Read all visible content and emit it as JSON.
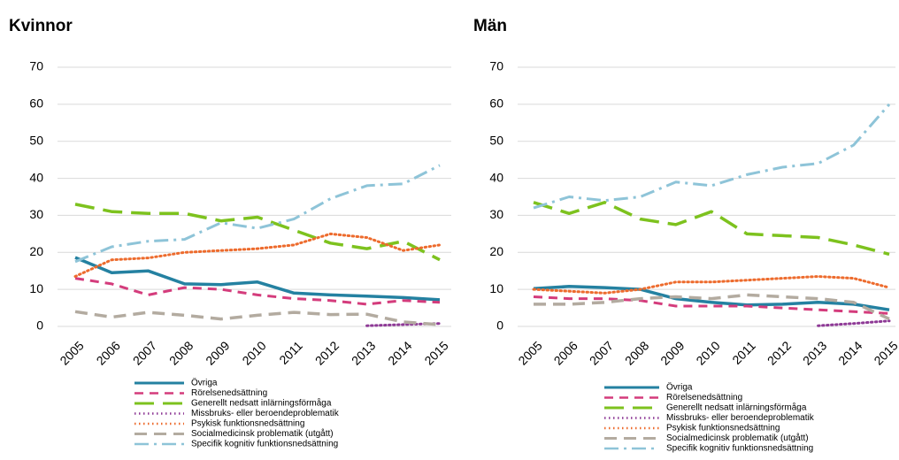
{
  "chart_data": [
    {
      "type": "line",
      "title": "Kvinnor",
      "categories": [
        "2005",
        "2006",
        "2007",
        "2008",
        "2009",
        "2010",
        "2011",
        "2012",
        "2013",
        "2014",
        "2015"
      ],
      "ylim": [
        0,
        70
      ],
      "yticks": [
        0,
        10,
        20,
        30,
        40,
        50,
        60,
        70
      ],
      "grid": true,
      "series": [
        {
          "name": "Övriga",
          "color": "#2481a1",
          "values": [
            18.6,
            14.5,
            15,
            11.5,
            11.3,
            12,
            9,
            8.5,
            8.2,
            7.8,
            7.2
          ]
        },
        {
          "name": "Rörelsenedsättning",
          "color": "#d43c7c",
          "values": [
            13,
            11.5,
            8.5,
            10.5,
            10,
            8.5,
            7.5,
            7,
            6,
            7,
            6.5
          ]
        },
        {
          "name": "Generellt nedsatt inlärningsförmåga",
          "color": "#7dc21e",
          "values": [
            33,
            31,
            30.5,
            30.5,
            28.5,
            29.5,
            26,
            22.5,
            21,
            23,
            18
          ]
        },
        {
          "name": "Missbruks- eller beroendeproblematik",
          "color": "#8e3a96",
          "values": [
            null,
            null,
            null,
            null,
            null,
            null,
            null,
            null,
            0.2,
            0.5,
            0.8
          ]
        },
        {
          "name": "Psykisk funktionsnedsättning",
          "color": "#ed6b2d",
          "values": [
            13.5,
            18,
            18.5,
            20,
            20.5,
            21,
            22,
            25,
            24,
            20.5,
            22
          ]
        },
        {
          "name": "Socialmedicinsk problematik (utgått)",
          "color": "#b3aba0",
          "values": [
            4,
            2.5,
            3.8,
            3,
            2,
            3,
            3.8,
            3.2,
            3.3,
            1.2,
            0.5
          ]
        },
        {
          "name": "Specifik kognitiv funktionsnedsättning",
          "color": "#8ec4d8",
          "values": [
            17.5,
            21.5,
            23,
            23.5,
            28,
            26.5,
            29,
            34.5,
            38,
            38.5,
            43.5
          ]
        }
      ]
    },
    {
      "type": "line",
      "title": "Män",
      "categories": [
        "2005",
        "2006",
        "2007",
        "2008",
        "2009",
        "2010",
        "2011",
        "2012",
        "2013",
        "2014",
        "2015"
      ],
      "ylim": [
        0,
        70
      ],
      "yticks": [
        0,
        10,
        20,
        30,
        40,
        50,
        60,
        70
      ],
      "grid": true,
      "series": [
        {
          "name": "Övriga",
          "color": "#2481a1",
          "values": [
            10.2,
            10.8,
            10.5,
            10,
            7.5,
            6.5,
            5.8,
            6,
            6.5,
            6,
            4.5
          ]
        },
        {
          "name": "Rörelsenedsättning",
          "color": "#d43c7c",
          "values": [
            8,
            7.5,
            7.5,
            7,
            5.5,
            5.5,
            5.5,
            5,
            4.5,
            4,
            3.5
          ]
        },
        {
          "name": "Generellt nedsatt inlärningsförmåga",
          "color": "#7dc21e",
          "values": [
            33.5,
            30.5,
            33.5,
            29,
            27.5,
            31,
            25,
            24.5,
            24,
            22,
            19.5
          ]
        },
        {
          "name": "Missbruks- eller beroendeproblematik",
          "color": "#8e3a96",
          "values": [
            null,
            null,
            null,
            null,
            null,
            null,
            null,
            null,
            0.2,
            0.8,
            1.5
          ]
        },
        {
          "name": "Psykisk funktionsnedsättning",
          "color": "#ed6b2d",
          "values": [
            10,
            9.5,
            9,
            10,
            12,
            12,
            12.5,
            13,
            13.5,
            13,
            10.5
          ]
        },
        {
          "name": "Socialmedicinsk problematik (utgått)",
          "color": "#b3aba0",
          "values": [
            6,
            6,
            6.5,
            7.5,
            8,
            7.5,
            8.5,
            8,
            7.5,
            6.5,
            2
          ]
        },
        {
          "name": "Specifik kognitiv funktionsnedsättning",
          "color": "#8ec4d8",
          "values": [
            32,
            35,
            34,
            35,
            39,
            38,
            41,
            43,
            44,
            49,
            60
          ]
        }
      ]
    }
  ]
}
